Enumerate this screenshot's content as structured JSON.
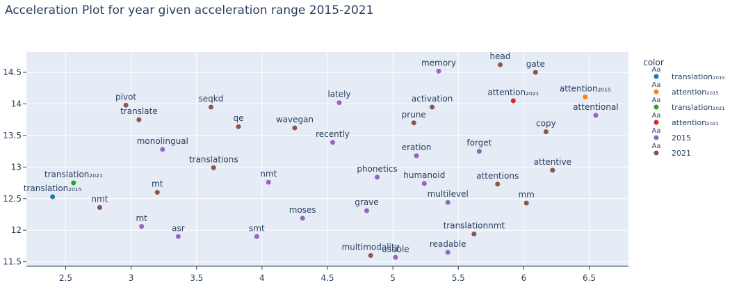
{
  "chart_data": {
    "type": "scatter",
    "title": "Acceleration Plot for year given acceleration range 2015-2021",
    "xlabel": "",
    "ylabel": "",
    "xlim": [
      2.2,
      6.8
    ],
    "ylim": [
      11.43,
      14.82
    ],
    "x_ticks": [
      2.5,
      3,
      3.5,
      4,
      4.5,
      5,
      5.5,
      6,
      6.5
    ],
    "y_ticks": [
      11.5,
      12,
      12.5,
      13,
      13.5,
      14,
      14.5
    ],
    "grid": true,
    "legend": {
      "title": "color",
      "placement": "right",
      "symbol_text": "Aa",
      "entries": [
        {
          "name": "translation₂₀₁₅",
          "color": "#1f77b4"
        },
        {
          "name": "attention₂₀₁₅",
          "color": "#ff7f0e"
        },
        {
          "name": "translation₂₀₂₁",
          "color": "#2ca02c"
        },
        {
          "name": "attention₂₀₂₁",
          "color": "#d62728"
        },
        {
          "name": "2015",
          "color": "#9467bd"
        },
        {
          "name": "2021",
          "color": "#8c564b"
        }
      ]
    },
    "points": [
      {
        "label": "translation₂₀₁₅",
        "x": 2.4,
        "y": 12.53,
        "group": "translation₂₀₁₅"
      },
      {
        "label": "attention₂₀₁₅",
        "x": 6.47,
        "y": 14.11,
        "group": "attention₂₀₁₅"
      },
      {
        "label": "translation₂₀₂₁",
        "x": 2.56,
        "y": 12.75,
        "group": "translation₂₀₂₁"
      },
      {
        "label": "attention₂₀₂₁",
        "x": 5.92,
        "y": 14.05,
        "group": "attention₂₀₂₁"
      },
      {
        "label": "memory",
        "x": 5.35,
        "y": 14.52,
        "group": "2015"
      },
      {
        "label": "lately",
        "x": 4.59,
        "y": 14.02,
        "group": "2015"
      },
      {
        "label": "attentional",
        "x": 6.55,
        "y": 13.82,
        "group": "2015"
      },
      {
        "label": "recently",
        "x": 4.54,
        "y": 13.39,
        "group": "2015"
      },
      {
        "label": "monolingual",
        "x": 3.24,
        "y": 13.28,
        "group": "2015"
      },
      {
        "label": "eration",
        "x": 5.18,
        "y": 13.18,
        "group": "2015"
      },
      {
        "label": "forget",
        "x": 5.66,
        "y": 13.25,
        "group": "2015"
      },
      {
        "label": "phonetics",
        "x": 4.88,
        "y": 12.84,
        "group": "2015"
      },
      {
        "label": "humanoid",
        "x": 5.24,
        "y": 12.74,
        "group": "2015"
      },
      {
        "label": "nmt",
        "x": 4.05,
        "y": 12.76,
        "group": "2015"
      },
      {
        "label": "multilevel",
        "x": 5.42,
        "y": 12.44,
        "group": "2015"
      },
      {
        "label": "grave",
        "x": 4.8,
        "y": 12.31,
        "group": "2015"
      },
      {
        "label": "moses",
        "x": 4.31,
        "y": 12.19,
        "group": "2015"
      },
      {
        "label": "mt",
        "x": 3.08,
        "y": 12.06,
        "group": "2015"
      },
      {
        "label": "asr",
        "x": 3.36,
        "y": 11.9,
        "group": "2015"
      },
      {
        "label": "smt",
        "x": 3.96,
        "y": 11.9,
        "group": "2015"
      },
      {
        "label": "readable",
        "x": 5.42,
        "y": 11.65,
        "group": "2015"
      },
      {
        "label": "usable",
        "x": 5.02,
        "y": 11.57,
        "group": "2015"
      },
      {
        "label": "head",
        "x": 5.82,
        "y": 14.62,
        "group": "2021"
      },
      {
        "label": "gate",
        "x": 6.09,
        "y": 14.5,
        "group": "2021"
      },
      {
        "label": "pivot",
        "x": 2.96,
        "y": 13.98,
        "group": "2021"
      },
      {
        "label": "seqkd",
        "x": 3.61,
        "y": 13.95,
        "group": "2021"
      },
      {
        "label": "activation",
        "x": 5.3,
        "y": 13.95,
        "group": "2021"
      },
      {
        "label": "translate",
        "x": 3.06,
        "y": 13.75,
        "group": "2021"
      },
      {
        "label": "qe",
        "x": 3.82,
        "y": 13.64,
        "group": "2021"
      },
      {
        "label": "wavegan",
        "x": 4.25,
        "y": 13.62,
        "group": "2021"
      },
      {
        "label": "prune",
        "x": 5.16,
        "y": 13.7,
        "group": "2021"
      },
      {
        "label": "copy",
        "x": 6.17,
        "y": 13.56,
        "group": "2021"
      },
      {
        "label": "translations",
        "x": 3.63,
        "y": 12.99,
        "group": "2021"
      },
      {
        "label": "attentive",
        "x": 6.22,
        "y": 12.95,
        "group": "2021"
      },
      {
        "label": "attentions",
        "x": 5.8,
        "y": 12.73,
        "group": "2021"
      },
      {
        "label": "mt",
        "x": 3.2,
        "y": 12.6,
        "group": "2021"
      },
      {
        "label": "nmt",
        "x": 2.76,
        "y": 12.36,
        "group": "2021"
      },
      {
        "label": "mm",
        "x": 6.02,
        "y": 12.43,
        "group": "2021"
      },
      {
        "label": "translationnmt",
        "x": 5.62,
        "y": 11.94,
        "group": "2021"
      },
      {
        "label": "multimodality",
        "x": 4.83,
        "y": 11.6,
        "group": "2021"
      }
    ]
  }
}
